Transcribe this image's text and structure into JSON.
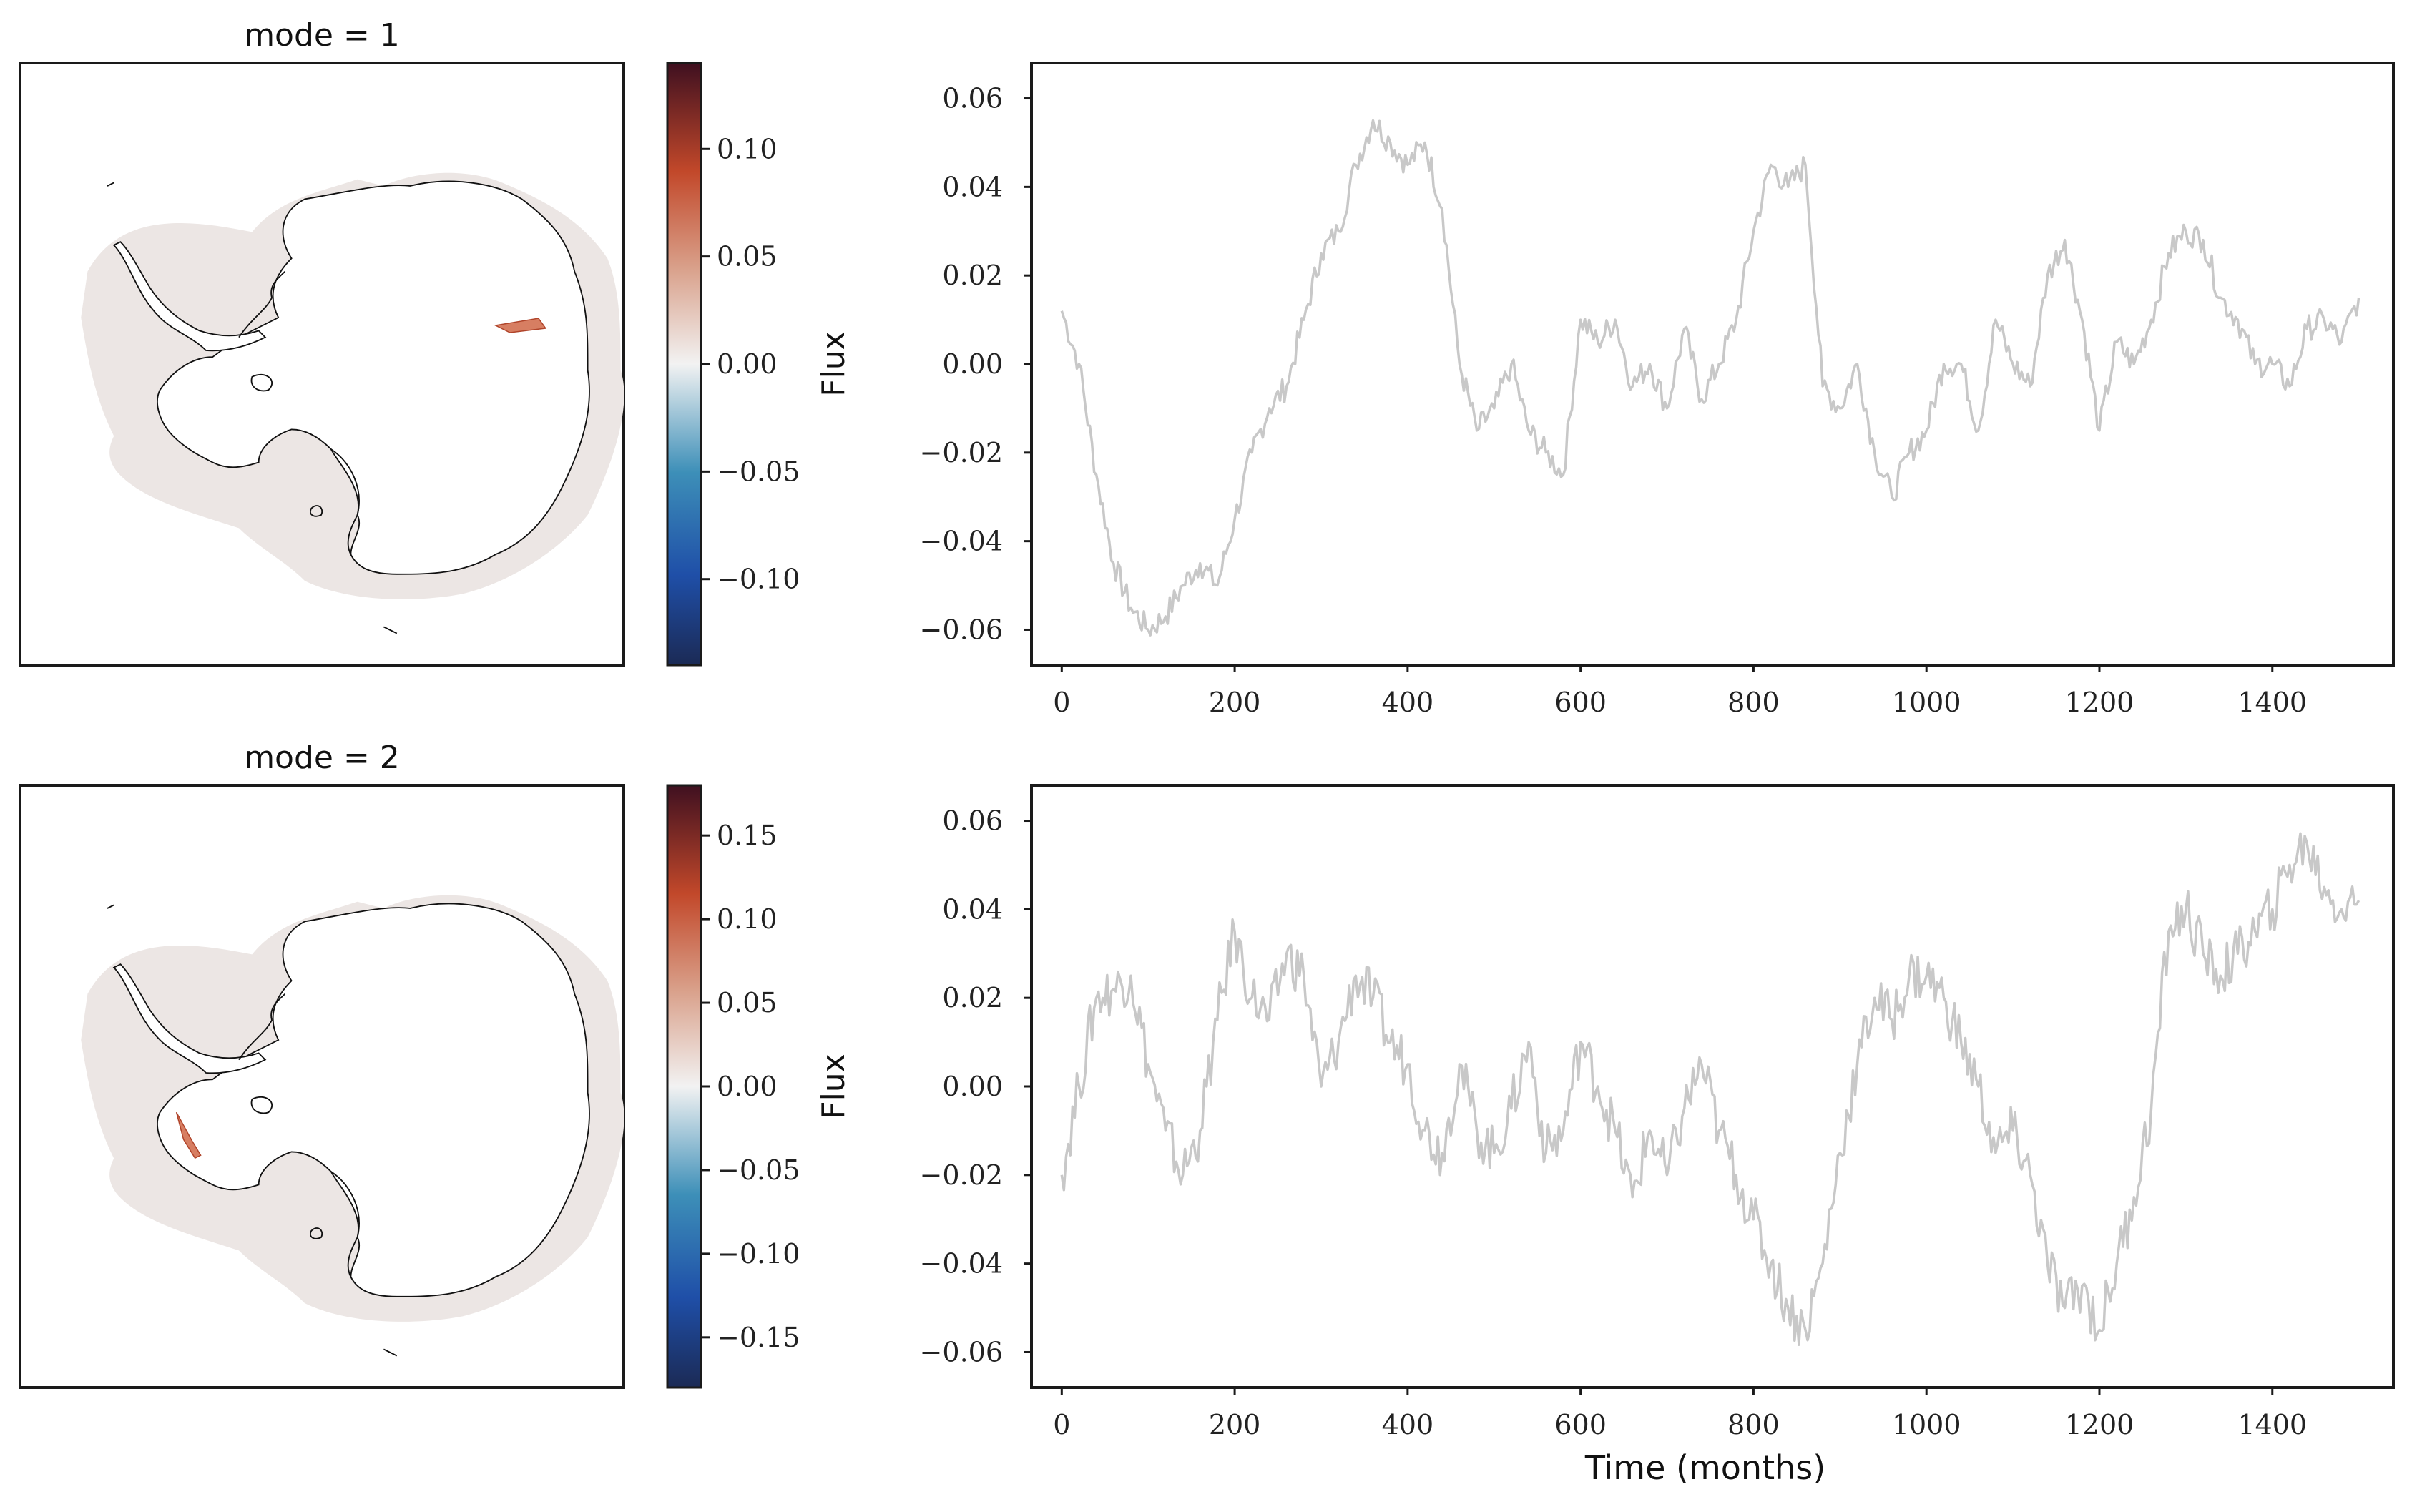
{
  "figure": {
    "xlabel": "Time (months)"
  },
  "panels": [
    {
      "map_title": "mode = 1",
      "colorbar_label": "Flux",
      "colorbar_ticks": [
        "0.10",
        "0.05",
        "0.00",
        "−0.05",
        "−0.10"
      ],
      "colorbar_range": [
        -0.14,
        0.14
      ]
    },
    {
      "map_title": "mode = 2",
      "colorbar_label": "Flux",
      "colorbar_ticks": [
        "0.15",
        "0.10",
        "0.05",
        "0.00",
        "−0.05",
        "−0.10",
        "−0.15"
      ],
      "colorbar_range": [
        -0.18,
        0.18
      ]
    }
  ],
  "colors": {
    "line": "#c8c8c8",
    "axes": "#1a1a1a",
    "map_fill": "#ece6e4",
    "coast": "#111111",
    "cmap_low": "#1b2a55",
    "cmap_mid": "#f2f2f2",
    "cmap_high": "#4a1420"
  },
  "chart_data": [
    {
      "type": "line",
      "title": "",
      "xlabel": "",
      "ylabel": "",
      "xlim": [
        -35,
        1540
      ],
      "ylim": [
        -0.068,
        0.068
      ],
      "x_ticks": [
        "0",
        "200",
        "400",
        "600",
        "800",
        "1000",
        "1200",
        "1400"
      ],
      "y_ticks": [
        "0.06",
        "0.04",
        "0.02",
        "0.00",
        "−0.02",
        "−0.04",
        "−0.06"
      ],
      "grid": false,
      "series": [
        {
          "x": [
            0,
            20,
            40,
            60,
            80,
            100,
            120,
            140,
            160,
            180,
            200,
            220,
            240,
            260,
            280,
            300,
            320,
            340,
            360,
            380,
            400,
            420,
            440,
            460,
            480,
            500,
            520,
            540,
            560,
            580,
            600,
            620,
            640,
            660,
            680,
            700,
            720,
            740,
            760,
            780,
            800,
            820,
            840,
            860,
            880,
            900,
            920,
            940,
            960,
            980,
            1000,
            1020,
            1040,
            1060,
            1080,
            1100,
            1120,
            1140,
            1160,
            1180,
            1200,
            1220,
            1240,
            1260,
            1280,
            1300,
            1320,
            1340,
            1360,
            1380,
            1400,
            1420,
            1440,
            1460,
            1480,
            1500
          ],
          "values": [
            0.012,
            0.0,
            -0.025,
            -0.045,
            -0.055,
            -0.06,
            -0.057,
            -0.05,
            -0.045,
            -0.05,
            -0.035,
            -0.02,
            -0.01,
            -0.005,
            0.01,
            0.025,
            0.03,
            0.045,
            0.055,
            0.05,
            0.045,
            0.05,
            0.035,
            0.0,
            -0.015,
            -0.01,
            0.0,
            -0.015,
            -0.02,
            -0.025,
            0.01,
            0.005,
            0.01,
            -0.005,
            0.0,
            -0.01,
            0.008,
            -0.008,
            0.0,
            0.01,
            0.03,
            0.045,
            0.04,
            0.045,
            -0.005,
            -0.01,
            0.0,
            -0.02,
            -0.03,
            -0.02,
            -0.015,
            0.0,
            0.0,
            -0.015,
            0.01,
            0.0,
            -0.005,
            0.02,
            0.028,
            0.01,
            -0.015,
            0.005,
            0.0,
            0.01,
            0.025,
            0.03,
            0.028,
            0.015,
            0.01,
            0.0,
            0.0,
            -0.005,
            0.008,
            0.01,
            0.005,
            0.015
          ]
        }
      ]
    },
    {
      "type": "line",
      "title": "",
      "xlabel": "Time (months)",
      "ylabel": "",
      "xlim": [
        -35,
        1540
      ],
      "ylim": [
        -0.068,
        0.068
      ],
      "x_ticks": [
        "0",
        "200",
        "400",
        "600",
        "800",
        "1000",
        "1200",
        "1400"
      ],
      "y_ticks": [
        "0.06",
        "0.04",
        "0.02",
        "0.00",
        "−0.02",
        "−0.04",
        "−0.06"
      ],
      "grid": false,
      "series": [
        {
          "x": [
            0,
            20,
            40,
            60,
            80,
            100,
            120,
            140,
            160,
            180,
            200,
            220,
            240,
            260,
            280,
            300,
            320,
            340,
            360,
            380,
            400,
            420,
            440,
            460,
            480,
            500,
            520,
            540,
            560,
            580,
            600,
            620,
            640,
            660,
            680,
            700,
            720,
            740,
            760,
            780,
            800,
            820,
            840,
            860,
            880,
            900,
            920,
            940,
            960,
            980,
            1000,
            1020,
            1040,
            1060,
            1080,
            1100,
            1120,
            1140,
            1160,
            1180,
            1200,
            1220,
            1240,
            1260,
            1280,
            1300,
            1320,
            1340,
            1360,
            1380,
            1400,
            1420,
            1440,
            1460,
            1480,
            1500
          ],
          "values": [
            -0.02,
            0.0,
            0.02,
            0.022,
            0.025,
            0.005,
            -0.01,
            -0.02,
            -0.01,
            0.015,
            0.035,
            0.02,
            0.015,
            0.03,
            0.025,
            0.0,
            0.01,
            0.025,
            0.02,
            0.01,
            0.005,
            -0.01,
            -0.015,
            0.005,
            -0.01,
            -0.015,
            -0.005,
            0.01,
            -0.015,
            -0.01,
            0.01,
            0.0,
            -0.01,
            -0.025,
            -0.01,
            -0.02,
            -0.005,
            0.005,
            -0.01,
            -0.02,
            -0.03,
            -0.04,
            -0.05,
            -0.055,
            -0.04,
            -0.015,
            0.005,
            0.02,
            0.015,
            0.025,
            0.025,
            0.02,
            0.01,
            0.0,
            -0.015,
            -0.01,
            -0.02,
            -0.04,
            -0.05,
            -0.045,
            -0.055,
            -0.04,
            -0.025,
            -0.005,
            0.035,
            0.04,
            0.03,
            0.025,
            0.03,
            0.035,
            0.04,
            0.05,
            0.055,
            0.045,
            0.04,
            0.042
          ]
        }
      ]
    }
  ]
}
